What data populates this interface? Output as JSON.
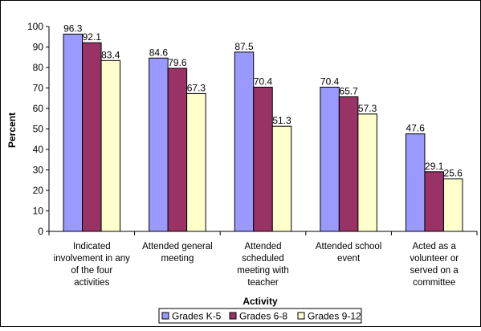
{
  "chart_data": {
    "type": "bar",
    "title": "",
    "xlabel": "Activity",
    "ylabel": "Percent",
    "ylim": [
      0,
      100
    ],
    "yticks": [
      0,
      10,
      20,
      30,
      40,
      50,
      60,
      70,
      80,
      90,
      100
    ],
    "grid": false,
    "legend_position": "bottom",
    "categories": [
      [
        "Indicated",
        "involvement in any",
        "of the four",
        "activities"
      ],
      [
        "Attended general",
        "meeting"
      ],
      [
        "Attended",
        "scheduled",
        "meeting with",
        "teacher"
      ],
      [
        "Attended school",
        "event"
      ],
      [
        "Acted as a",
        "volunteer or",
        "served on a",
        "committee"
      ]
    ],
    "series": [
      {
        "name": "Grades K-5",
        "color": "#9999FF",
        "values": [
          96.3,
          84.6,
          87.5,
          70.4,
          47.6
        ]
      },
      {
        "name": "Grades 6-8",
        "color": "#993366",
        "values": [
          92.1,
          79.6,
          70.4,
          65.7,
          29.1
        ]
      },
      {
        "name": "Grades 9-12",
        "color": "#FFFFCC",
        "values": [
          83.4,
          67.3,
          51.3,
          57.3,
          25.6
        ]
      }
    ]
  }
}
